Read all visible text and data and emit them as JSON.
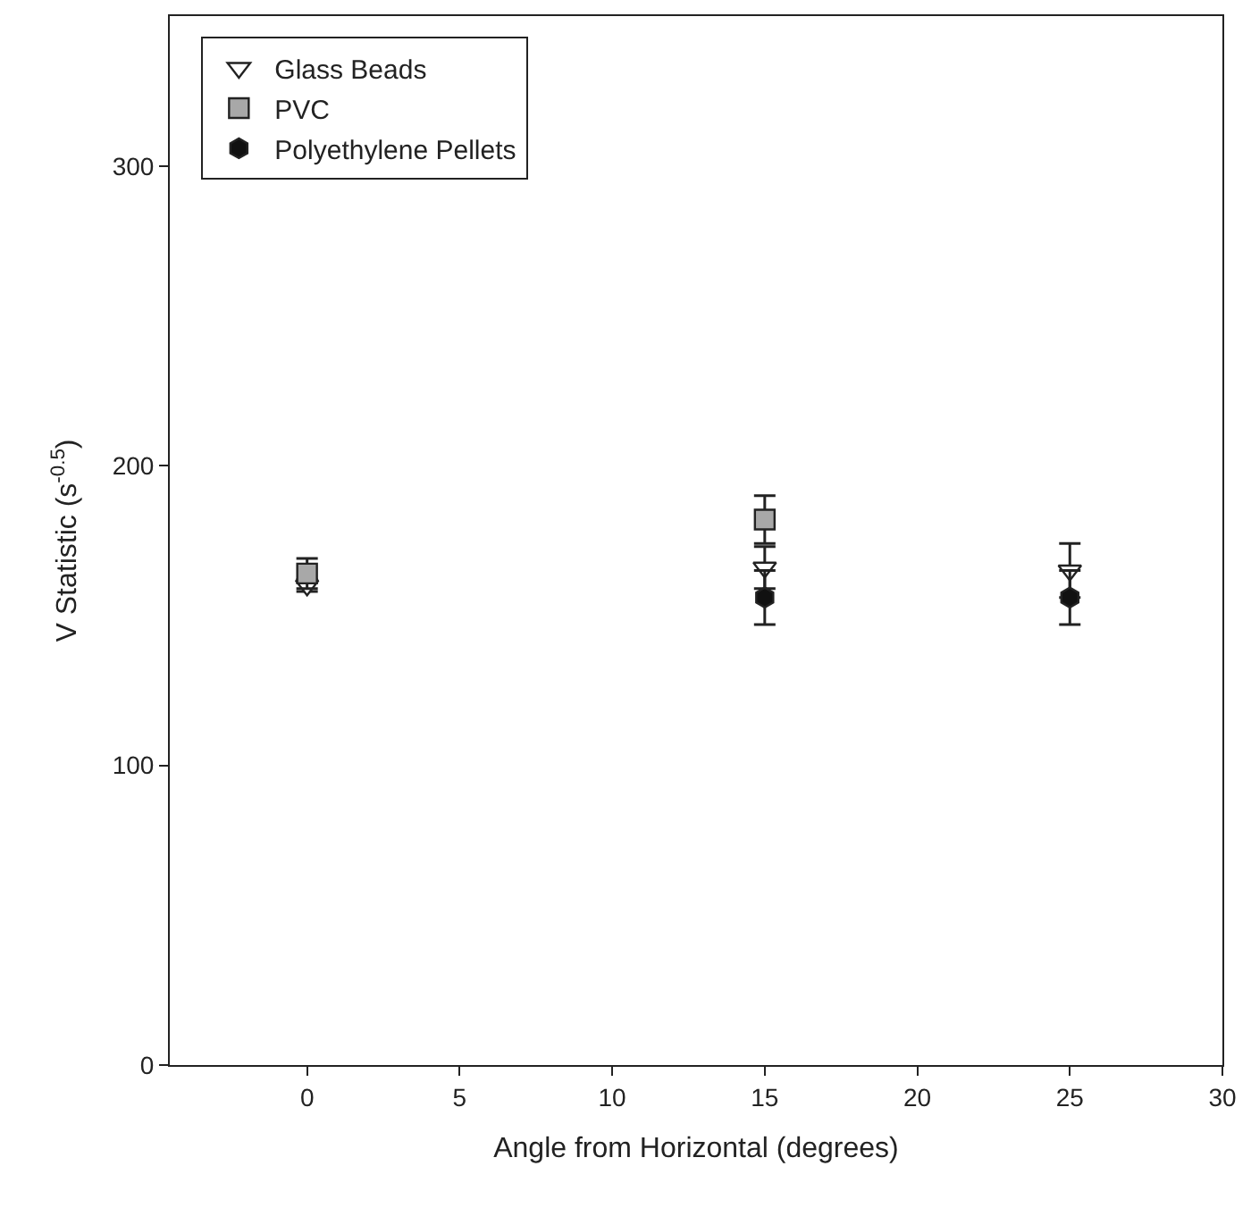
{
  "chart_data": {
    "type": "scatter",
    "xlabel": "Angle from Horizontal (degrees)",
    "ylabel": "V Statistic (s$^{-0.5}$)",
    "xlim": [
      -4.5,
      30
    ],
    "xticks": [
      0,
      5,
      10,
      15,
      20,
      25,
      30
    ],
    "ylim": [
      0,
      350
    ],
    "yticks": [
      0,
      100,
      200,
      300
    ],
    "legend": "top left",
    "series": [
      {
        "name": "Glass Beads",
        "color": "#ffffff",
        "marker": "triangle",
        "x": [
          0,
          15,
          25
        ],
        "values": [
          160,
          166,
          165
        ],
        "errors": [
          2,
          7,
          9
        ]
      },
      {
        "name": "PVC",
        "color": "#a8a8a8",
        "marker": "square",
        "x": [
          0,
          15
        ],
        "values": [
          164,
          182
        ],
        "errors": [
          5,
          8
        ]
      },
      {
        "name": "Polyethylene Pellets",
        "color": "#111111",
        "marker": "circle",
        "x": [
          15,
          25
        ],
        "values": [
          156,
          156
        ],
        "errors": [
          9,
          9
        ]
      }
    ]
  }
}
